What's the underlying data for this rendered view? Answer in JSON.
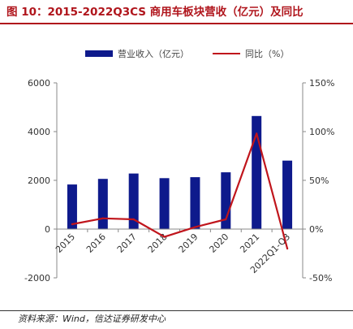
{
  "title": "图 10：2015-2022Q3CS 商用车板块营收（亿元）及同比",
  "footer": "资料来源：Wind，信达证券研发中心",
  "colors": {
    "bar": "#0e1a8c",
    "line": "#c0151c",
    "title": "#b0151c",
    "axis": "#888888"
  },
  "chart_data": {
    "type": "bar",
    "categories": [
      "2015",
      "2016",
      "2017",
      "2018",
      "2019",
      "2020",
      "2021",
      "2022Q1-Q3"
    ],
    "series": [
      {
        "name": "营业收入（亿元）",
        "type": "bar",
        "axis": "left",
        "values": [
          1830,
          2060,
          2280,
          2090,
          2130,
          2330,
          4640,
          2810
        ]
      },
      {
        "name": "同比（%）",
        "type": "line",
        "axis": "right",
        "values": [
          5,
          11,
          10,
          -8,
          2,
          10,
          98,
          -20
        ]
      }
    ],
    "ylim": [
      -2000,
      6000
    ],
    "y2lim": [
      -50,
      150
    ],
    "yticks": [
      "-2000",
      "0",
      "2000",
      "4000",
      "6000"
    ],
    "y2ticks": [
      "-50%",
      "0%",
      "50%",
      "100%",
      "150%"
    ],
    "legend_position": "top"
  }
}
